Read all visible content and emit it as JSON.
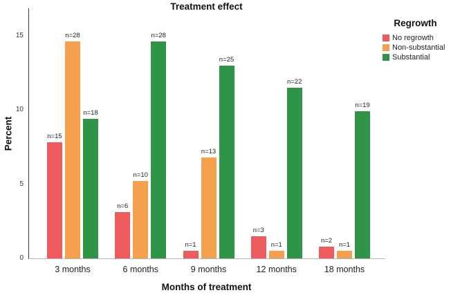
{
  "chart_data": {
    "type": "bar",
    "title": "Treatment effect",
    "xlabel": "Months of treatment",
    "ylabel": "Percent",
    "categories": [
      "3 months",
      "6 months",
      "9 months",
      "12 months",
      "18 months"
    ],
    "series": [
      {
        "name": "No regrowth",
        "color": "#EE5B5D",
        "values": [
          7.8,
          3.1,
          0.5,
          1.5,
          0.8
        ],
        "bar_labels": [
          "n=15",
          "n=6",
          "n=1",
          "n=3",
          "n=2"
        ]
      },
      {
        "name": "Non-substantial",
        "color": "#F5A04C",
        "values": [
          14.6,
          5.2,
          6.8,
          0.5,
          0.5
        ],
        "bar_labels": [
          "n=28",
          "n=10",
          "n=13",
          "n=1",
          "n=1"
        ]
      },
      {
        "name": "Substantial",
        "color": "#2F9448",
        "values": [
          9.4,
          14.6,
          13.0,
          11.5,
          9.9
        ],
        "bar_labels": [
          "n=18",
          "n=28",
          "n=25",
          "n=22",
          "n=19"
        ]
      }
    ],
    "yticks": [
      0,
      5,
      10,
      15
    ],
    "ylim": [
      0,
      16.84
    ],
    "legend_title": "Regrowth",
    "legend_position": "right",
    "grid": false,
    "background_color": "#ffffff",
    "axis_line_color": "#3a3a3a",
    "baseline_color": "#b3b3b3"
  }
}
